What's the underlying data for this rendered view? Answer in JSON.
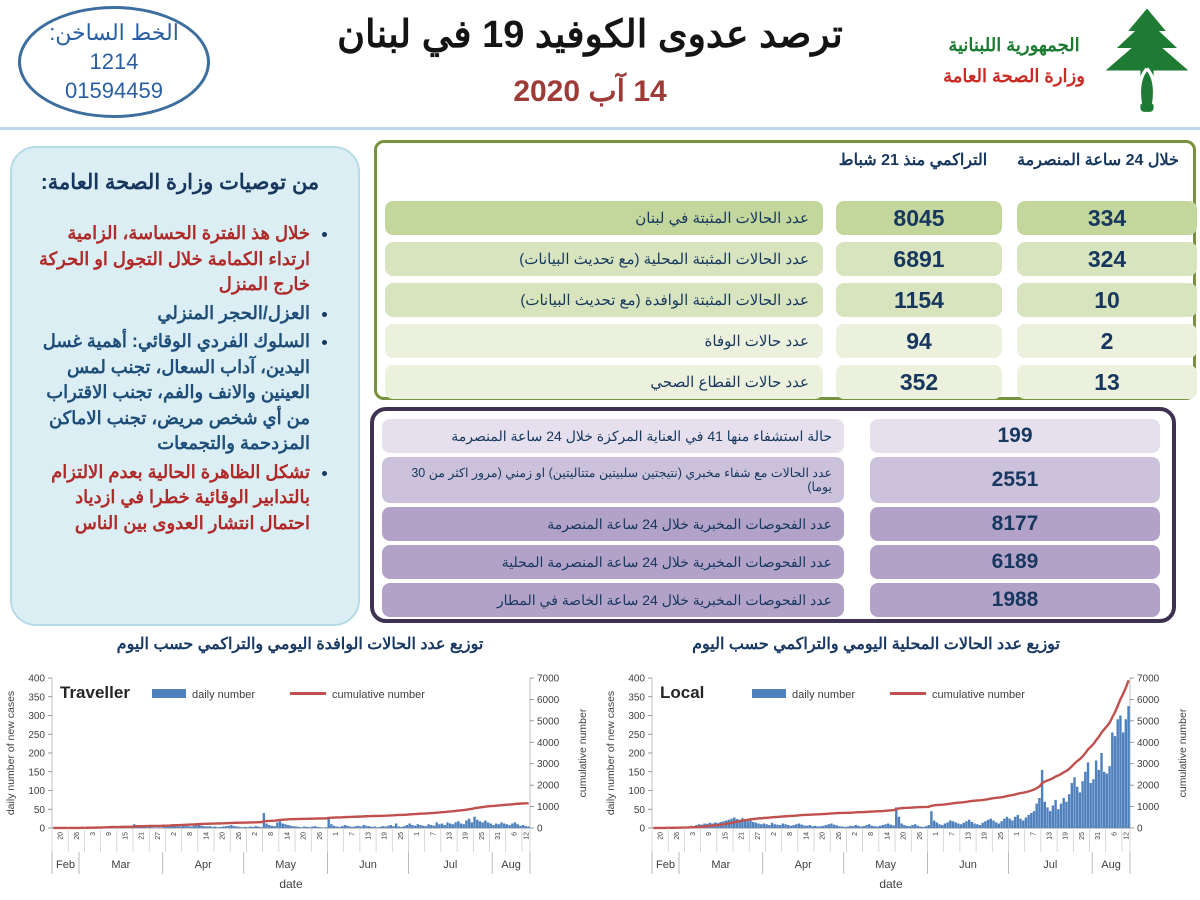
{
  "header": {
    "hotline": {
      "label": "الخط الساخن:",
      "short_number": "1214",
      "phone": "01594459"
    },
    "title": "ترصد عدوى الكوفيد 19 في لبنان",
    "date": "14 آب 2020",
    "ministry": {
      "line1": "الجمهورية اللبنانية",
      "line2": "وزارة الصحة العامة"
    }
  },
  "recommendations": {
    "title": "من توصيات وزارة الصحة العامة:",
    "bullets": [
      {
        "text": "خلال هذ الفترة الحساسة، الزامية ارتداء الكمامة خلال التجول او الحركة خارج المنزل",
        "color": "#b02a29"
      },
      {
        "text": "العزل/الحجر المنزلي",
        "color": "#1f4e79"
      },
      {
        "text": "السلوك الفردي الوقائي: أهمية غسل اليدين، آداب السعال، تجنب لمس العينين والانف والفم، تجنب الاقتراب من أي شخص مريض، تجنب الاماكن المزدحمة والتجمعات",
        "color": "#1f4e79"
      },
      {
        "text": "تشكل الظاهرة الحالية بعدم الالتزام بالتدابير الوقائية خطرا في ازدياد احتمال انتشار العدوى بين الناس",
        "color": "#b02a29"
      }
    ]
  },
  "summary_table": {
    "col_cum": "التراكمي منذ 21 شباط",
    "col_24h": "خلال 24 ساعة المنصرمة",
    "rows": [
      {
        "label": "عدد الحالات المثبتة في لبنان",
        "cum": "8045",
        "last24": "334",
        "shade": "dark"
      },
      {
        "label": "عدد الحالات المثبتة المحلية  (مع تحديث البيانات)",
        "cum": "6891",
        "last24": "324",
        "shade": "mid"
      },
      {
        "label": "عدد الحالات المثبتة الوافدة (مع تحديث البيانات)",
        "cum": "1154",
        "last24": "10",
        "shade": "mid"
      },
      {
        "label": "عدد حالات الوفاة",
        "cum": "94",
        "last24": "2",
        "shade": "light"
      },
      {
        "label": "عدد حالات القطاع الصحي",
        "cum": "352",
        "last24": "13",
        "shade": "light"
      }
    ]
  },
  "detail_table": {
    "rows": [
      {
        "label": "حالة استشفاء منها  41 في العناية المركزة خلال 24 ساعة المنصرمة",
        "value": "199",
        "shade": "light",
        "tall": false
      },
      {
        "label": "عدد الحالات مع شفاء مخبري (نتيجتين سلبيتين متتاليتين) او زمني (مرور اكثر من 30 يوما)",
        "value": "2551",
        "shade": "mid",
        "tall": true
      },
      {
        "label": "عدد الفحوصات المخبرية خلال 24 ساعة المنصرمة",
        "value": "8177",
        "shade": "dark",
        "tall": false
      },
      {
        "label": "عدد الفحوصات المخبرية خلال 24 ساعة المنصرمة المحلية",
        "value": "6189",
        "shade": "dark",
        "tall": false
      },
      {
        "label": "عدد الفحوصات المخبرية خلال 24 ساعة الخاصة في المطار",
        "value": "1988",
        "shade": "dark",
        "tall": false
      }
    ]
  },
  "charts_section": {
    "left_title": "توزيع عدد الحالات الوافدة اليومي والتراكمي حسب اليوم",
    "right_title": "توزيع عدد الحالات المحلية اليومي والتراكمي حسب اليوم"
  },
  "chart_data": [
    {
      "type": "bar",
      "name": "Traveller",
      "legend": [
        "daily number",
        "cumulative number"
      ],
      "xlabel": "date",
      "ylabel_left": "daily number of new cases",
      "ylabel_right": "cumulative number",
      "ylim_left": [
        0,
        400
      ],
      "ytick_step_left": 50,
      "ylim_right": [
        0,
        7000
      ],
      "ytick_step_right": 1000,
      "bar_color": "#4f81bd",
      "line_color": "#c0504d",
      "x_tick_labels": [
        "20",
        "26",
        "3",
        "9",
        "15",
        "21",
        "27",
        "2",
        "8",
        "14",
        "20",
        "26",
        "2",
        "8",
        "14",
        "20",
        "26",
        "1",
        "7",
        "13",
        "19",
        "25",
        "1",
        "7",
        "13",
        "19",
        "25",
        "31",
        "6",
        "12"
      ],
      "months": [
        {
          "label": "Feb",
          "days": 10
        },
        {
          "label": "Mar",
          "days": 31
        },
        {
          "label": "Apr",
          "days": 30
        },
        {
          "label": "May",
          "days": 31
        },
        {
          "label": "Jun",
          "days": 30
        },
        {
          "label": "Jul",
          "days": 31
        },
        {
          "label": "Aug",
          "days": 14
        }
      ],
      "cumulative_total": 1154,
      "daily_values": [
        1,
        0,
        1,
        0,
        0,
        1,
        0,
        1,
        0,
        0,
        2,
        1,
        3,
        2,
        1,
        2,
        3,
        4,
        2,
        3,
        5,
        4,
        6,
        3,
        2,
        4,
        3,
        2,
        3,
        2,
        10,
        8,
        5,
        4,
        3,
        2,
        3,
        2,
        1,
        2,
        1,
        5,
        6,
        4,
        8,
        6,
        5,
        4,
        6,
        8,
        5,
        4,
        6,
        8,
        10,
        6,
        5,
        4,
        5,
        3,
        4,
        2,
        3,
        4,
        5,
        6,
        8,
        5,
        4,
        3,
        2,
        3,
        2,
        4,
        3,
        5,
        4,
        2,
        40,
        12,
        8,
        6,
        5,
        15,
        18,
        12,
        10,
        8,
        6,
        5,
        4,
        3,
        2,
        4,
        3,
        2,
        4,
        5,
        3,
        2,
        1,
        2,
        25,
        10,
        6,
        4,
        3,
        5,
        8,
        6,
        4,
        3,
        5,
        6,
        4,
        8,
        6,
        5,
        3,
        4,
        2,
        3,
        5,
        4,
        6,
        8,
        5,
        12,
        4,
        3,
        5,
        8,
        12,
        8,
        6,
        10,
        8,
        6,
        5,
        10,
        8,
        6,
        15,
        10,
        12,
        8,
        15,
        12,
        10,
        15,
        18,
        12,
        10,
        20,
        25,
        15,
        30,
        22,
        18,
        15,
        20,
        15,
        12,
        8,
        12,
        10,
        15,
        12,
        10,
        8,
        12,
        15,
        10,
        6,
        8,
        5,
        4
      ]
    },
    {
      "type": "bar",
      "name": "Local",
      "legend": [
        "daily number",
        "cumulative number"
      ],
      "xlabel": "date",
      "ylabel_left": "daily number of new cases",
      "ylabel_right": "cumulative number",
      "ylim_left": [
        0,
        400
      ],
      "ytick_step_left": 50,
      "ylim_right": [
        0,
        7000
      ],
      "ytick_step_right": 1000,
      "bar_color": "#4f81bd",
      "line_color": "#c0504d",
      "x_tick_labels": [
        "20",
        "26",
        "3",
        "9",
        "15",
        "21",
        "27",
        "2",
        "8",
        "14",
        "20",
        "26",
        "2",
        "8",
        "14",
        "20",
        "26",
        "1",
        "7",
        "13",
        "19",
        "25",
        "1",
        "7",
        "13",
        "19",
        "25",
        "31",
        "6",
        "12"
      ],
      "months": [
        {
          "label": "Feb",
          "days": 10
        },
        {
          "label": "Mar",
          "days": 31
        },
        {
          "label": "Apr",
          "days": 30
        },
        {
          "label": "May",
          "days": 31
        },
        {
          "label": "Jun",
          "days": 30
        },
        {
          "label": "Jul",
          "days": 31
        },
        {
          "label": "Aug",
          "days": 14
        }
      ],
      "cumulative_total": 6891,
      "daily_values": [
        0,
        1,
        2,
        1,
        0,
        2,
        1,
        3,
        2,
        1,
        2,
        3,
        4,
        3,
        6,
        5,
        8,
        10,
        9,
        12,
        11,
        14,
        12,
        15,
        13,
        16,
        18,
        20,
        22,
        25,
        28,
        24,
        22,
        26,
        20,
        18,
        22,
        16,
        14,
        12,
        10,
        12,
        10,
        8,
        14,
        10,
        9,
        8,
        12,
        10,
        8,
        6,
        8,
        10,
        12,
        9,
        7,
        6,
        8,
        5,
        6,
        4,
        5,
        6,
        8,
        10,
        12,
        9,
        7,
        5,
        4,
        3,
        4,
        6,
        5,
        8,
        6,
        4,
        5,
        8,
        10,
        6,
        5,
        4,
        6,
        8,
        10,
        12,
        9,
        7,
        55,
        30,
        12,
        8,
        6,
        5,
        8,
        10,
        6,
        4,
        3,
        5,
        8,
        45,
        20,
        15,
        10,
        8,
        12,
        15,
        20,
        18,
        15,
        12,
        10,
        14,
        18,
        22,
        16,
        12,
        10,
        8,
        14,
        18,
        22,
        25,
        20,
        15,
        12,
        18,
        25,
        30,
        25,
        20,
        30,
        35,
        25,
        20,
        28,
        35,
        40,
        45,
        65,
        80,
        155,
        70,
        55,
        45,
        60,
        75,
        50,
        65,
        80,
        70,
        90,
        120,
        135,
        110,
        95,
        125,
        150,
        175,
        120,
        130,
        180,
        155,
        200,
        150,
        145,
        165,
        255,
        245,
        290,
        300,
        255,
        290,
        325
      ]
    }
  ]
}
